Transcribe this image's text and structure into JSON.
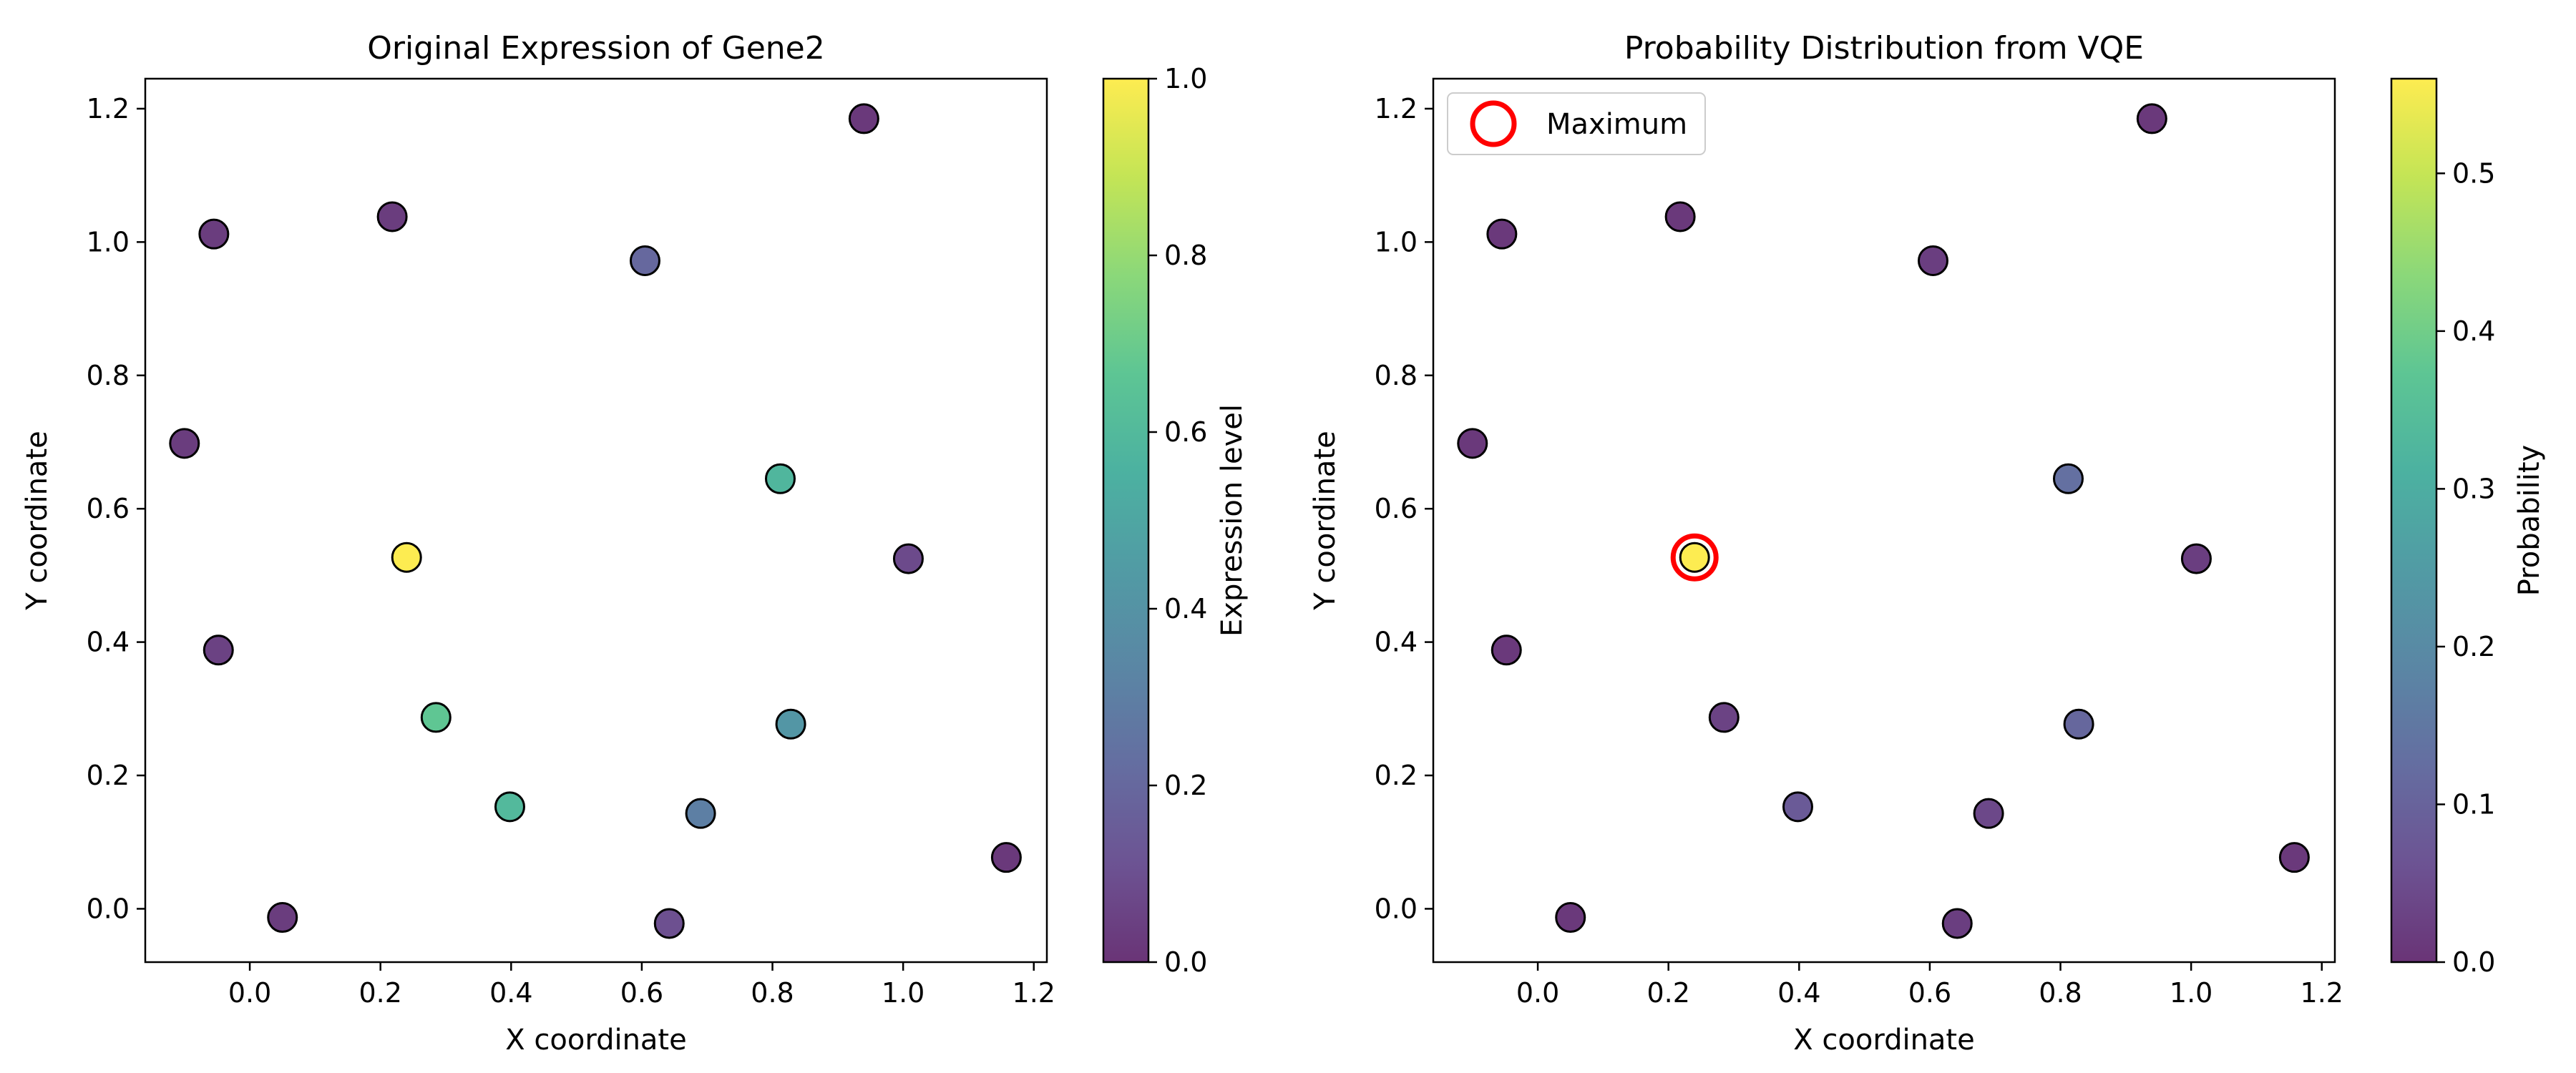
{
  "colors": {
    "viridis": [
      "#440154",
      "#482878",
      "#3e4989",
      "#31688e",
      "#26828e",
      "#1f9e89",
      "#35b779",
      "#6ece58",
      "#b5de2b",
      "#fde725"
    ],
    "point_alpha": 0.8,
    "marker_edge": "#000000",
    "maximum_ring": "#ff0000"
  },
  "chart_data": [
    {
      "type": "scatter",
      "title": "Original Expression of Gene2",
      "xlabel": "X coordinate",
      "ylabel": "Y coordinate",
      "xlim": [
        -0.16,
        1.22
      ],
      "ylim": [
        -0.08,
        1.245
      ],
      "xticks": [
        0.0,
        0.2,
        0.4,
        0.6,
        0.8,
        1.0,
        1.2
      ],
      "yticks": [
        0.0,
        0.2,
        0.4,
        0.6,
        0.8,
        1.0,
        1.2
      ],
      "colorbar": {
        "label": "Expression level",
        "min": 0.0,
        "max": 1.0,
        "ticks": [
          0.0,
          0.2,
          0.4,
          0.6,
          0.8,
          1.0
        ],
        "colormap": "viridis"
      },
      "points": [
        {
          "x": 0.94,
          "y": 1.185,
          "value": 0.02
        },
        {
          "x": -0.055,
          "y": 1.012,
          "value": 0.03
        },
        {
          "x": 0.218,
          "y": 1.038,
          "value": 0.03
        },
        {
          "x": 0.605,
          "y": 0.972,
          "value": 0.2
        },
        {
          "x": -0.1,
          "y": 0.698,
          "value": 0.03
        },
        {
          "x": 0.812,
          "y": 0.645,
          "value": 0.58
        },
        {
          "x": 1.008,
          "y": 0.525,
          "value": 0.08
        },
        {
          "x": 0.24,
          "y": 0.527,
          "value": 1.0
        },
        {
          "x": -0.048,
          "y": 0.388,
          "value": 0.05
        },
        {
          "x": 0.285,
          "y": 0.287,
          "value": 0.67
        },
        {
          "x": 0.828,
          "y": 0.277,
          "value": 0.42
        },
        {
          "x": 0.398,
          "y": 0.153,
          "value": 0.6
        },
        {
          "x": 0.69,
          "y": 0.143,
          "value": 0.3
        },
        {
          "x": 1.158,
          "y": 0.077,
          "value": 0.02
        },
        {
          "x": 0.05,
          "y": -0.013,
          "value": 0.03
        },
        {
          "x": 0.642,
          "y": -0.022,
          "value": 0.1
        }
      ]
    },
    {
      "type": "scatter",
      "title": "Probability Distribution from VQE",
      "xlabel": "X coordinate",
      "ylabel": "Y coordinate",
      "xlim": [
        -0.16,
        1.22
      ],
      "ylim": [
        -0.08,
        1.245
      ],
      "xticks": [
        0.0,
        0.2,
        0.4,
        0.6,
        0.8,
        1.0,
        1.2
      ],
      "yticks": [
        0.0,
        0.2,
        0.4,
        0.6,
        0.8,
        1.0,
        1.2
      ],
      "colorbar": {
        "label": "Probability",
        "min": 0.0,
        "max": 0.56,
        "ticks": [
          0.0,
          0.1,
          0.2,
          0.3,
          0.4,
          0.5
        ],
        "colormap": "viridis"
      },
      "legend": {
        "label": "Maximum",
        "position": "top-left"
      },
      "maximum": {
        "x": 0.24,
        "y": 0.527
      },
      "points": [
        {
          "x": 0.94,
          "y": 1.185,
          "value": 0.01
        },
        {
          "x": -0.055,
          "y": 1.012,
          "value": 0.01
        },
        {
          "x": 0.218,
          "y": 1.038,
          "value": 0.01
        },
        {
          "x": 0.605,
          "y": 0.972,
          "value": 0.02
        },
        {
          "x": -0.1,
          "y": 0.698,
          "value": 0.01
        },
        {
          "x": 0.812,
          "y": 0.645,
          "value": 0.13
        },
        {
          "x": 1.008,
          "y": 0.525,
          "value": 0.02
        },
        {
          "x": 0.24,
          "y": 0.527,
          "value": 0.56
        },
        {
          "x": -0.048,
          "y": 0.388,
          "value": 0.01
        },
        {
          "x": 0.285,
          "y": 0.287,
          "value": 0.03
        },
        {
          "x": 0.828,
          "y": 0.277,
          "value": 0.11
        },
        {
          "x": 0.398,
          "y": 0.153,
          "value": 0.08
        },
        {
          "x": 0.69,
          "y": 0.143,
          "value": 0.04
        },
        {
          "x": 1.158,
          "y": 0.077,
          "value": 0.01
        },
        {
          "x": 0.05,
          "y": -0.013,
          "value": 0.01
        },
        {
          "x": 0.642,
          "y": -0.022,
          "value": 0.02
        }
      ]
    }
  ]
}
